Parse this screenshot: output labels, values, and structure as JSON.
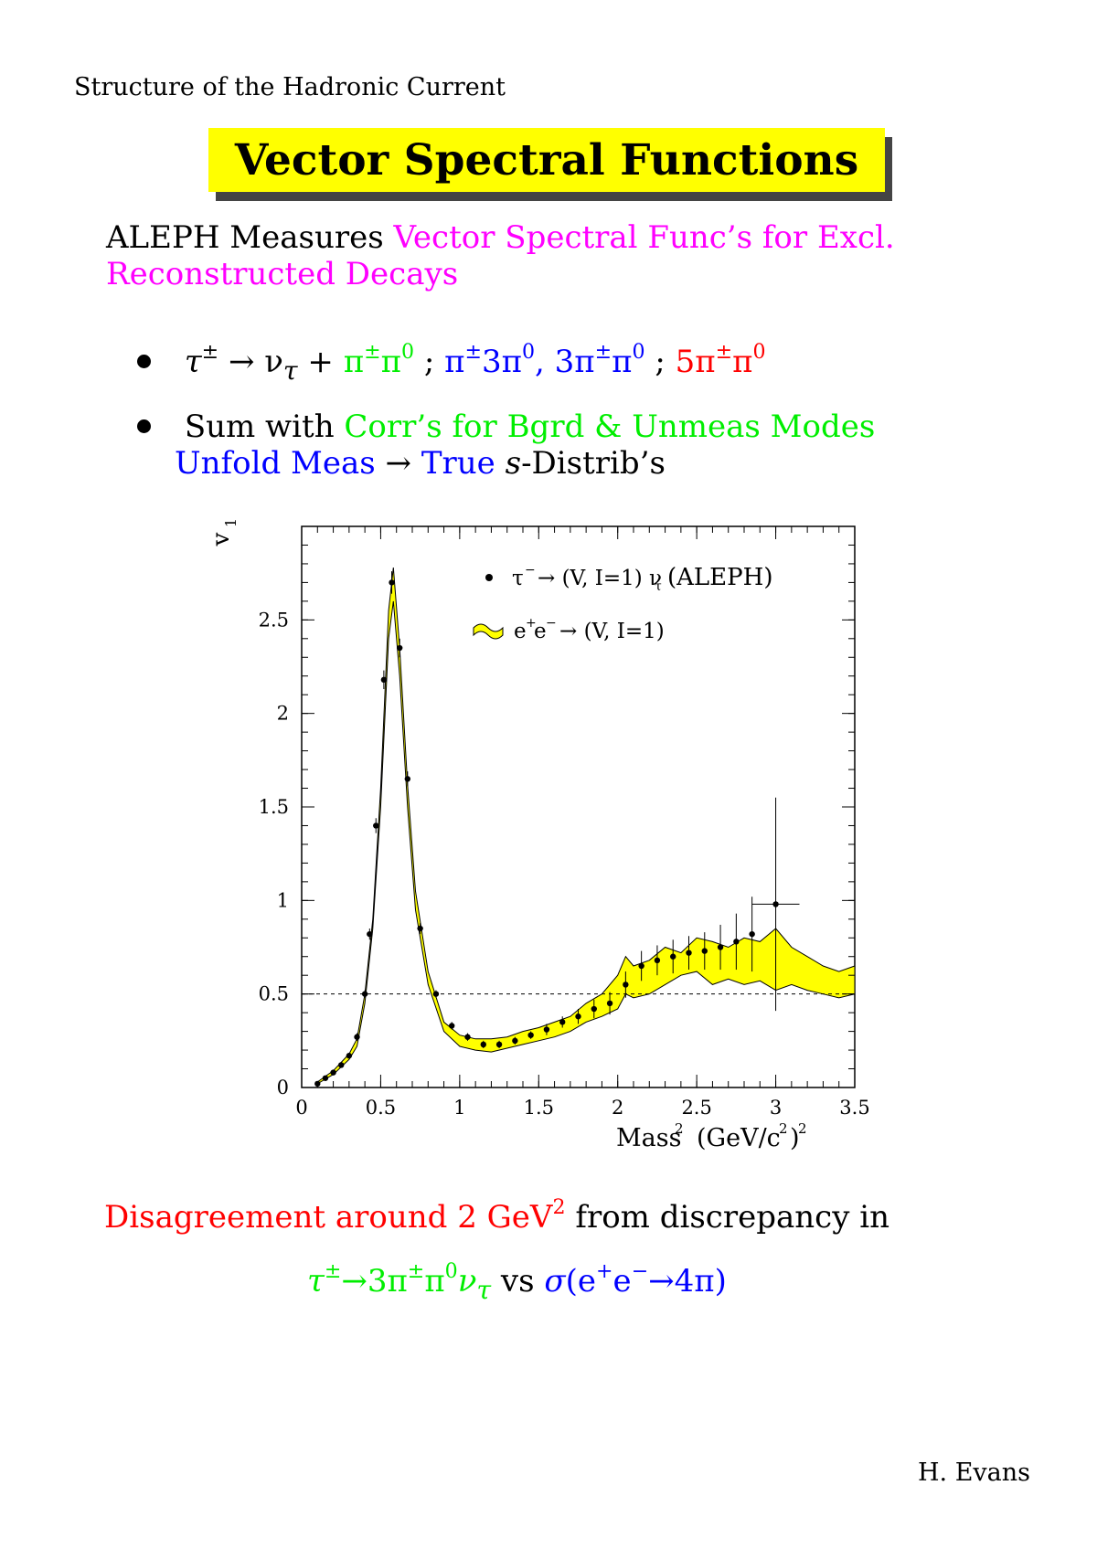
{
  "header": {
    "title": "Structure of the Hadronic Current"
  },
  "banner": {
    "title": "Vector Spectral Functions"
  },
  "intro": {
    "black": "ALEPH Measures",
    "magenta_1": "Vector Spectral Func’s for Excl.",
    "magenta_2": "Reconstructed Decays"
  },
  "bullets": [
    {
      "tau": "τ",
      "pm": "±",
      "arrow": "→ ν",
      "sub_tau": "τ",
      "plus": "+",
      "g1": "π",
      "g1_sup": "±",
      "g2": "π",
      "g2_sup": "0",
      "sep1": ";",
      "b1": "π",
      "b1_sup": "±",
      "b2": "3π",
      "b2_sup": "0",
      "b3": ", 3π",
      "b3_sup": "±",
      "b4": "π",
      "b4_sup": "0",
      "sep2": ";",
      "r1": "5π",
      "r1_sup": "±",
      "r2": "π",
      "r2_sup": "0"
    },
    {
      "black": "Sum with",
      "green": "Corr’s for Bgrd & Unmeas Modes",
      "blue_1": "Unfold Meas",
      "arrow": "→",
      "blue_2": "True",
      "s": "s",
      "rest": "-Distrib’s"
    }
  ],
  "chart_data": {
    "type": "scatter",
    "ylabel": "v",
    "ylabel_sub": "1",
    "xlabel": "Mass",
    "xlabel_sup": "2",
    "xlabel_unit": "(GeV/c",
    "xlabel_unit_sup": "2",
    "xlabel_unit_close": ")",
    "xlabel_unit_close_sup": "2",
    "xlim": [
      0,
      3.5
    ],
    "ylim": [
      0,
      3.0
    ],
    "xticks": [
      "0",
      "0.5",
      "1",
      "1.5",
      "2",
      "2.5",
      "3",
      "3.5"
    ],
    "yticks": [
      "0",
      "0.5",
      "1",
      "1.5",
      "2",
      "2.5"
    ],
    "reference_line_y": 0.5,
    "legend": [
      {
        "label_a": "τ",
        "label_a_sup": "−",
        "label_b": "→ (V, I=1) ν",
        "label_b_sub": "τ",
        "label_c": "(ALEPH)"
      },
      {
        "label_a": "e",
        "label_a_sup": "+",
        "label_b": "e",
        "label_b_sup": "−",
        "label_c": "→ (V, I=1)"
      }
    ],
    "series": [
      {
        "name": "τ⁻ → (V, I=1) ν_τ (ALEPH)",
        "x": [
          0.1,
          0.15,
          0.2,
          0.25,
          0.3,
          0.35,
          0.4,
          0.43,
          0.47,
          0.52,
          0.57,
          0.62,
          0.67,
          0.75,
          0.85,
          0.95,
          1.05,
          1.15,
          1.25,
          1.35,
          1.45,
          1.55,
          1.65,
          1.75,
          1.85,
          1.95,
          2.05,
          2.15,
          2.25,
          2.35,
          2.45,
          2.55,
          2.65,
          2.75,
          2.85,
          3.0
        ],
        "y": [
          0.02,
          0.05,
          0.08,
          0.12,
          0.17,
          0.27,
          0.5,
          0.82,
          1.4,
          2.18,
          2.7,
          2.35,
          1.65,
          0.85,
          0.5,
          0.33,
          0.27,
          0.23,
          0.23,
          0.25,
          0.28,
          0.31,
          0.35,
          0.38,
          0.42,
          0.45,
          0.55,
          0.65,
          0.68,
          0.7,
          0.72,
          0.73,
          0.75,
          0.78,
          0.82,
          0.98
        ],
        "yerr": [
          0.01,
          0.01,
          0.01,
          0.01,
          0.01,
          0.02,
          0.02,
          0.03,
          0.04,
          0.05,
          0.06,
          0.05,
          0.04,
          0.03,
          0.02,
          0.02,
          0.02,
          0.02,
          0.02,
          0.02,
          0.02,
          0.03,
          0.03,
          0.04,
          0.05,
          0.06,
          0.07,
          0.08,
          0.08,
          0.09,
          0.09,
          0.1,
          0.12,
          0.15,
          0.2,
          0.57
        ]
      },
      {
        "name": "e⁺e⁻ → (V, I=1)",
        "x": [
          0.1,
          0.2,
          0.3,
          0.35,
          0.4,
          0.45,
          0.5,
          0.55,
          0.58,
          0.62,
          0.67,
          0.72,
          0.8,
          0.9,
          1.0,
          1.1,
          1.2,
          1.3,
          1.4,
          1.5,
          1.6,
          1.7,
          1.8,
          1.9,
          2.0,
          2.05,
          2.1,
          2.2,
          2.3,
          2.4,
          2.5,
          2.6,
          2.7,
          2.8,
          2.9,
          3.0,
          3.1,
          3.2,
          3.3,
          3.4,
          3.5
        ],
        "lower": [
          0.02,
          0.07,
          0.15,
          0.22,
          0.45,
          0.85,
          1.5,
          2.4,
          2.6,
          2.2,
          1.5,
          0.95,
          0.55,
          0.3,
          0.22,
          0.2,
          0.19,
          0.21,
          0.23,
          0.25,
          0.27,
          0.3,
          0.35,
          0.38,
          0.42,
          0.5,
          0.48,
          0.5,
          0.55,
          0.6,
          0.62,
          0.55,
          0.58,
          0.55,
          0.57,
          0.52,
          0.55,
          0.52,
          0.5,
          0.48,
          0.5
        ],
        "upper": [
          0.03,
          0.09,
          0.18,
          0.26,
          0.5,
          0.9,
          1.6,
          2.55,
          2.78,
          2.35,
          1.62,
          1.05,
          0.62,
          0.35,
          0.28,
          0.26,
          0.26,
          0.27,
          0.3,
          0.32,
          0.35,
          0.38,
          0.45,
          0.5,
          0.6,
          0.7,
          0.65,
          0.68,
          0.75,
          0.72,
          0.8,
          0.78,
          0.75,
          0.8,
          0.78,
          0.85,
          0.75,
          0.7,
          0.65,
          0.62,
          0.65
        ]
      }
    ]
  },
  "bottom": {
    "red": "Disagreement around 2 GeV",
    "red_sup": "2",
    "black": "from discrepancy in",
    "g_tau": "τ",
    "g_tau_sup": "±",
    "g_rest": "→3π",
    "g_rest_sup": "±",
    "g_pi": "π",
    "g_pi_sup": "0",
    "g_nu": "ν",
    "g_nu_sub": "τ",
    "vs": "vs",
    "b_sigma": "σ",
    "b_open": "(e",
    "b_e_sup": "+",
    "b_e2": "e",
    "b_e2_sup": "−",
    "b_rest": "→4π)"
  },
  "footer": {
    "author": "H. Evans"
  },
  "colors": {
    "banner": "#ffff00",
    "band": "#ffff00",
    "magenta": "#ff00ff",
    "green": "#00ee00",
    "blue": "#0000ff",
    "red": "#ff0000"
  }
}
